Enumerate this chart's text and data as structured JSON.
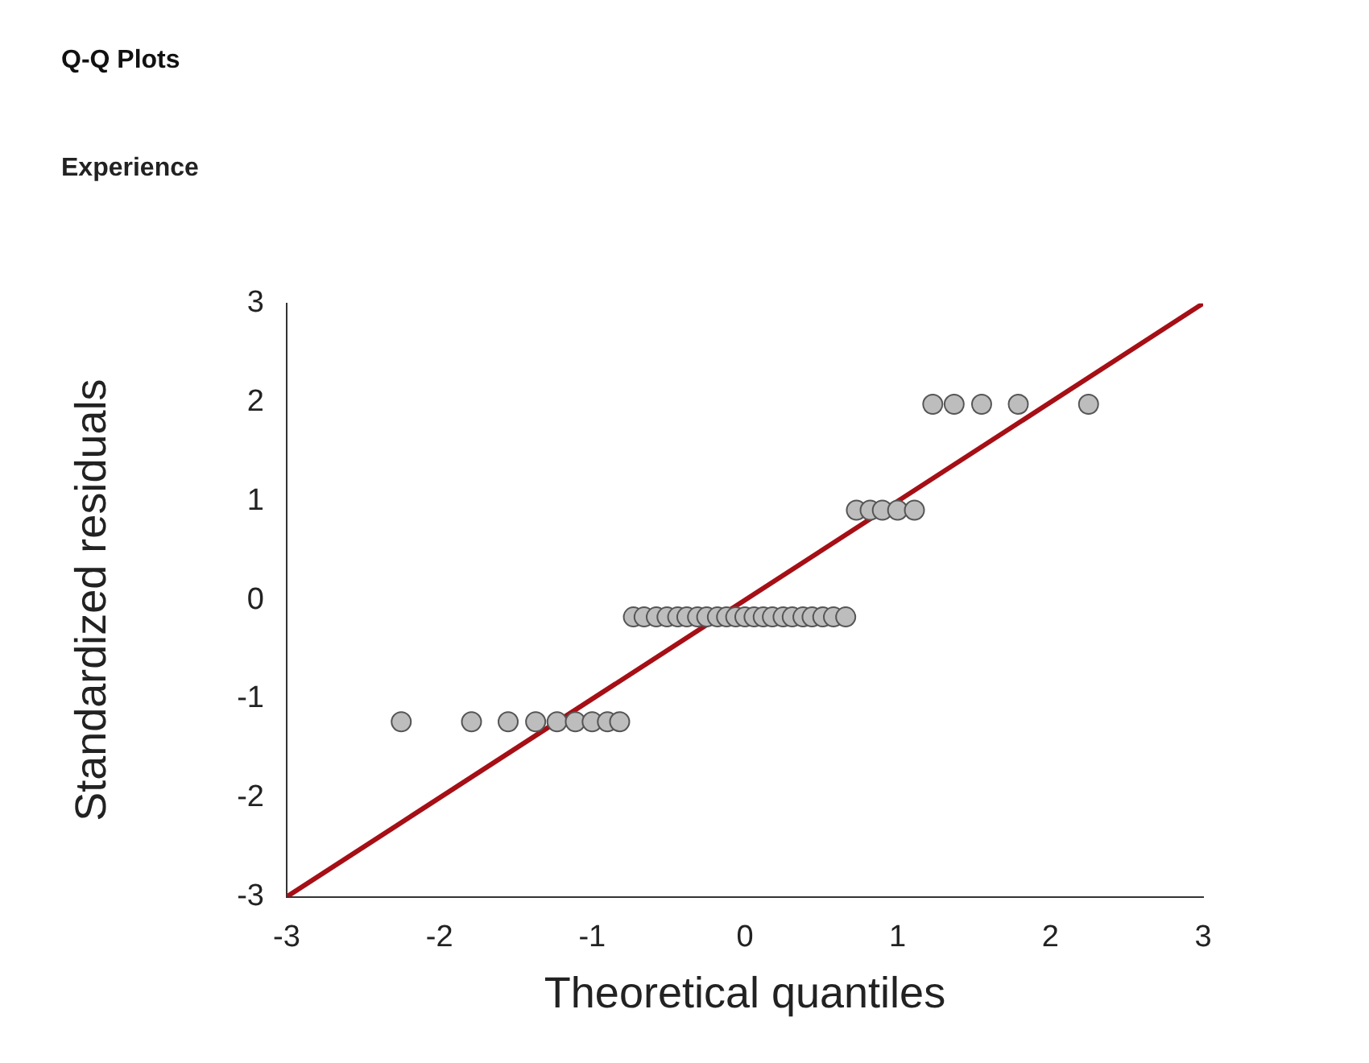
{
  "chart_data": {
    "type": "scatter",
    "title": "Q-Q Plots",
    "subtitle": "Experience",
    "xlabel": "Theoretical quantiles",
    "ylabel": "Standardized residuals",
    "xlim": [
      -3,
      3
    ],
    "ylim": [
      -3,
      3
    ],
    "xticks": [
      -3,
      -2,
      -1,
      0,
      1,
      2,
      3
    ],
    "yticks": [
      -3,
      -2,
      -1,
      0,
      1,
      2,
      3
    ],
    "grid": false,
    "legend": false,
    "series": [
      {
        "marker": "circle",
        "color": "#bdbdbd",
        "x": [
          -2.25,
          -1.79,
          -1.55,
          -1.37,
          -1.23,
          -1.11,
          -1.0,
          -0.9,
          -0.82,
          -0.73,
          -0.66,
          -0.58,
          -0.51,
          -0.44,
          -0.38,
          -0.31,
          -0.25,
          -0.18,
          -0.12,
          -0.06,
          0,
          0.06,
          0.12,
          0.18,
          0.25,
          0.31,
          0.38,
          0.44,
          0.51,
          0.58,
          0.66,
          0.73,
          0.82,
          0.9,
          1.0,
          1.11,
          1.23,
          1.37,
          1.55,
          1.79,
          2.25
        ],
        "values": [
          -1.23,
          -1.23,
          -1.23,
          -1.23,
          -1.23,
          -1.23,
          -1.23,
          -1.23,
          -1.23,
          -0.17,
          -0.17,
          -0.17,
          -0.17,
          -0.17,
          -0.17,
          -0.17,
          -0.17,
          -0.17,
          -0.17,
          -0.17,
          -0.17,
          -0.17,
          -0.17,
          -0.17,
          -0.17,
          -0.17,
          -0.17,
          -0.17,
          -0.17,
          -0.17,
          -0.17,
          0.91,
          0.91,
          0.91,
          0.91,
          0.91,
          1.98,
          1.98,
          1.98,
          1.98,
          1.98
        ]
      },
      {
        "type": "line",
        "marker": "none",
        "color": "#a50f15",
        "line_style": "solid",
        "x": [
          -3,
          3
        ],
        "values": [
          -3,
          3
        ]
      }
    ]
  }
}
